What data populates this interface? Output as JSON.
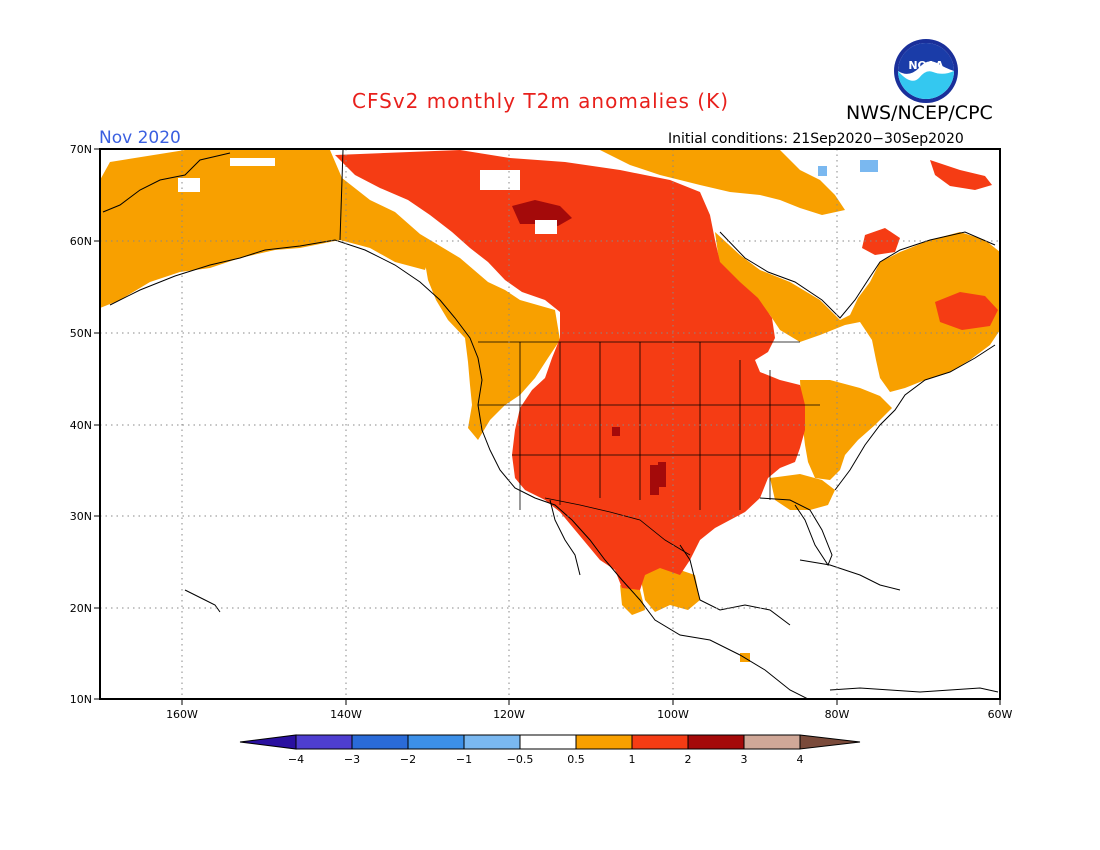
{
  "title": "CFSv2 monthly T2m anomalies (K)",
  "organization": "NWS/NCEP/CPC",
  "logo_text": "NOAA",
  "target_month": "Nov 2020",
  "initial_conditions": "Initial conditions: 21Sep2020−30Sep2020",
  "map": {
    "projection": "lat-lon",
    "lat_range": [
      10,
      70
    ],
    "lon_range": [
      -170,
      -60
    ],
    "lat_labels": [
      "70N",
      "60N",
      "50N",
      "40N",
      "30N",
      "20N",
      "10N"
    ],
    "lon_labels": [
      "160W",
      "140W",
      "120W",
      "100W",
      "80W",
      "60W"
    ],
    "grid": "dotted"
  },
  "legend": {
    "units": "K",
    "tick_labels": [
      "−4",
      "−3",
      "−2",
      "−1",
      "−0.5",
      "0.5",
      "1",
      "2",
      "3",
      "4"
    ],
    "colors": [
      "#2a10a0",
      "#4e3ed0",
      "#2a6bd8",
      "#3c90e8",
      "#7ab8f0",
      "#ffffff",
      "#f8a000",
      "#f53c14",
      "#a40a0a",
      "#d0a898",
      "#7a4a3a"
    ]
  },
  "colors": {
    "title": "#e8201c",
    "month_label": "#3a5fe0",
    "cat_0_5_1": "#f8a000",
    "cat_1_2": "#f53c14",
    "cat_2_3": "#a40a0a",
    "cat_neg_0_5_1": "#7ab8f0"
  }
}
